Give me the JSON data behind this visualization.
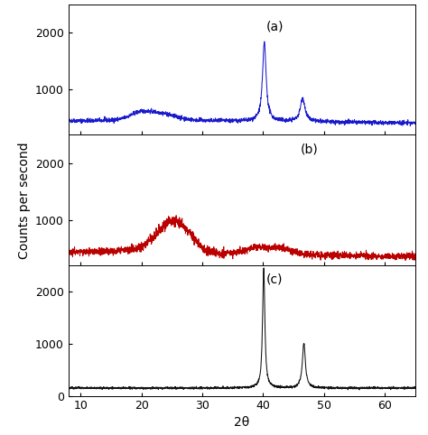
{
  "xlim": [
    8,
    65
  ],
  "ylim_a": [
    200,
    2500
  ],
  "ylim_b": [
    200,
    2500
  ],
  "ylim_c": [
    0,
    2500
  ],
  "yticks_a": [
    1000,
    2000
  ],
  "yticks_b": [
    1000,
    2000
  ],
  "yticks_c": [
    0,
    1000,
    2000
  ],
  "xticks": [
    10,
    20,
    30,
    40,
    50,
    60
  ],
  "xlabel": "2θ",
  "ylabel": "Counts per second",
  "label_a": "(a)",
  "label_b": "(b)",
  "label_c": "(c)",
  "color_a": "#1a1acd",
  "color_b": "#BB0000",
  "color_c": "#111111",
  "background": "#FFFFFF",
  "label_fontsize": 10,
  "tick_fontsize": 9,
  "axis_label_fontsize": 10
}
